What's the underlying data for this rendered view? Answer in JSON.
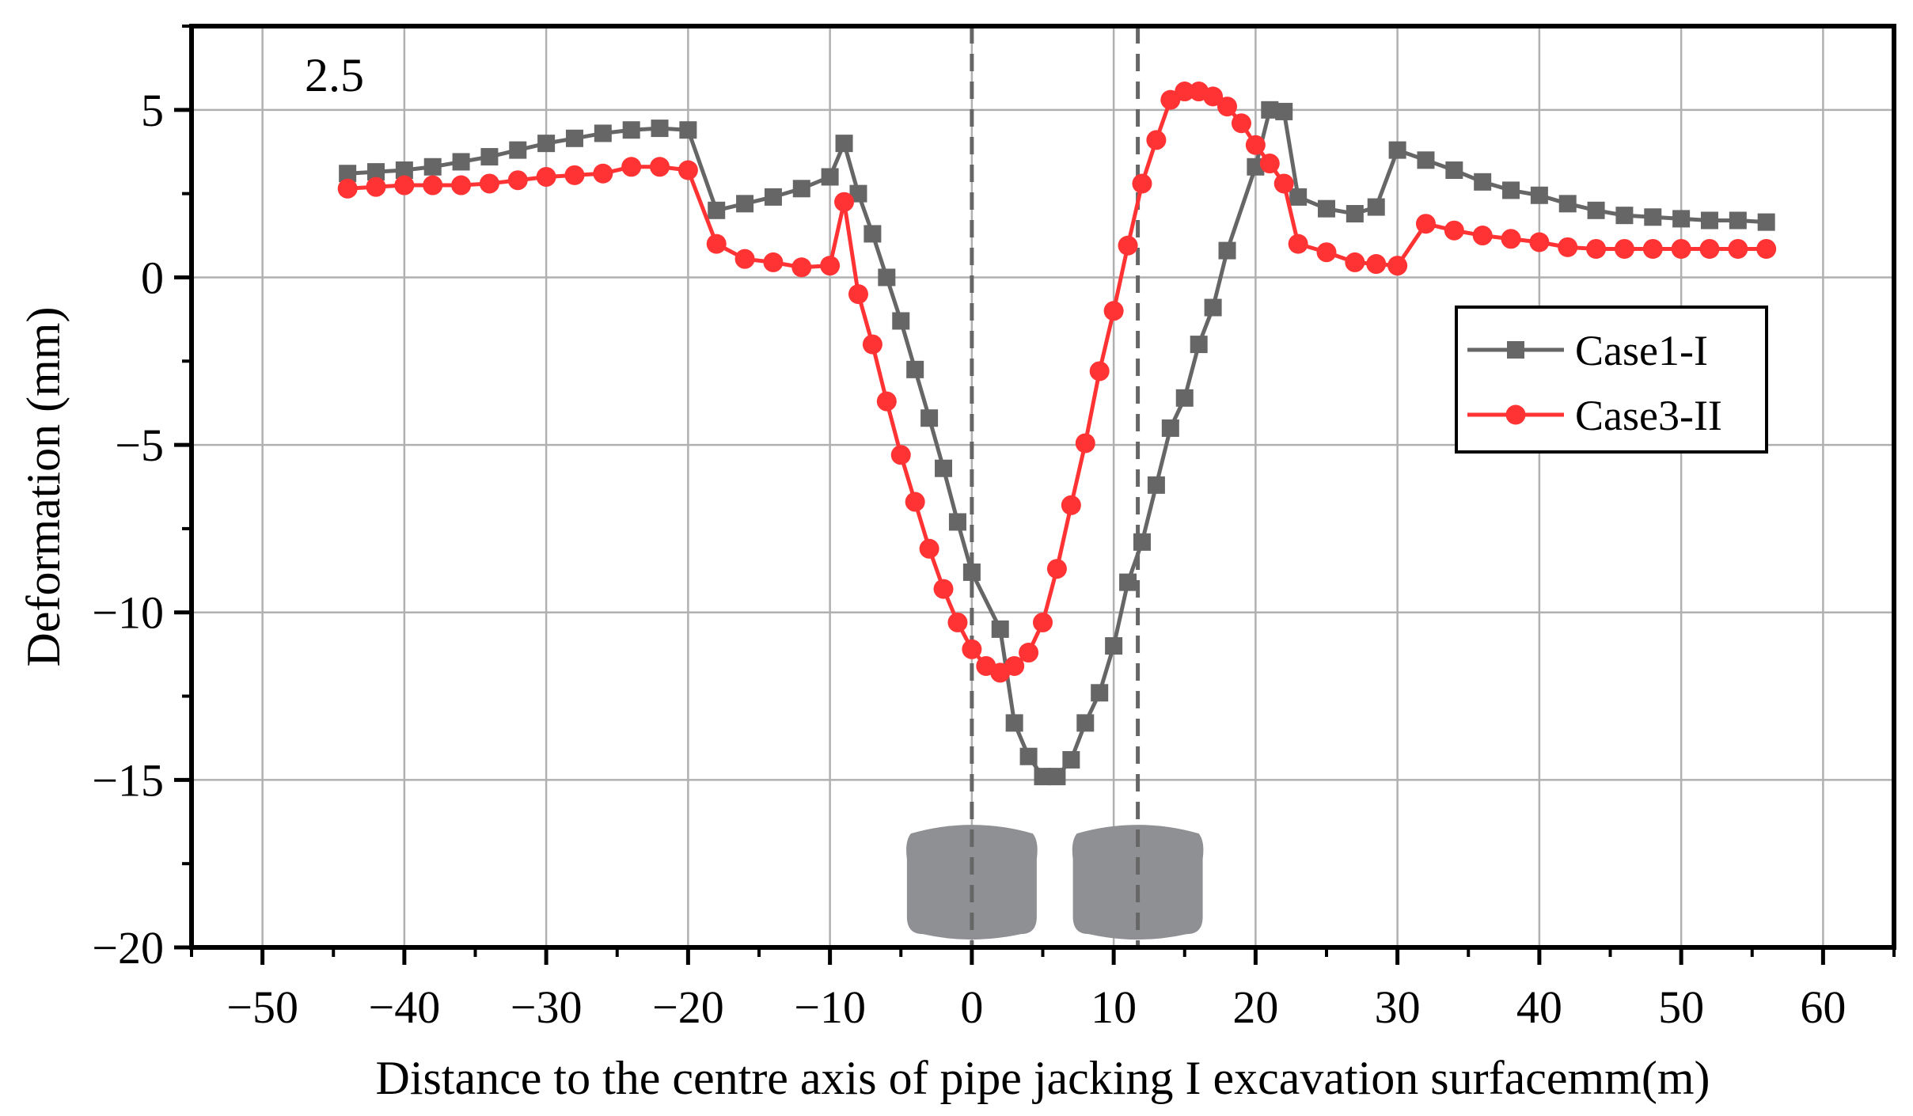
{
  "chart_data": {
    "type": "line",
    "title": "",
    "annotation": "2.5",
    "xlabel": "Distance to the centre axis of pipe jacking I excavation surfacemm(m)",
    "ylabel": "Deformation (mm)",
    "xlim": [
      -55,
      65
    ],
    "ylim": [
      -20,
      7.5
    ],
    "xticks": [
      -50,
      -40,
      -30,
      -20,
      -10,
      0,
      10,
      20,
      30,
      40,
      50,
      60
    ],
    "xtick_labels": [
      "−50",
      "−40",
      "−30",
      "−20",
      "−10",
      "0",
      "10",
      "20",
      "30",
      "40",
      "50",
      "60"
    ],
    "yticks": [
      5,
      0,
      -5,
      -10,
      -15,
      -20
    ],
    "ytick_labels": [
      "5",
      "0",
      "−5",
      "−10",
      "−15",
      "−20"
    ],
    "grid": true,
    "legend_position": "right",
    "reference_lines_x": [
      0,
      11.7
    ],
    "pipe_sections_center_x": [
      0,
      11.7
    ],
    "series": [
      {
        "name": "Case1-I",
        "color": "#666666",
        "marker": "square",
        "x": [
          -44,
          -42,
          -40,
          -38,
          -36,
          -34,
          -32,
          -30,
          -28,
          -26,
          -24,
          -22,
          -20,
          -18,
          -16,
          -14,
          -12,
          -10,
          -9,
          -8,
          -7,
          -6,
          -5,
          -4,
          -3,
          -2,
          -1,
          0,
          2,
          3,
          4,
          5,
          6,
          7,
          8,
          9,
          10,
          11,
          12,
          13,
          14,
          15,
          16,
          17,
          18,
          20,
          21,
          22,
          23,
          25,
          27,
          28.5,
          30,
          32,
          34,
          36,
          38,
          40,
          42,
          44,
          46,
          48,
          50,
          52,
          54,
          56
        ],
        "y": [
          3.1,
          3.15,
          3.2,
          3.3,
          3.45,
          3.6,
          3.8,
          4.0,
          4.15,
          4.3,
          4.4,
          4.45,
          4.4,
          2.0,
          2.2,
          2.4,
          2.65,
          3.0,
          4.0,
          2.5,
          1.3,
          0.0,
          -1.3,
          -2.75,
          -4.2,
          -5.7,
          -7.3,
          -8.8,
          -10.5,
          -13.3,
          -14.3,
          -14.9,
          -14.9,
          -14.4,
          -13.3,
          -12.4,
          -11.0,
          -9.1,
          -7.9,
          -6.2,
          -4.5,
          -3.6,
          -2.0,
          -0.9,
          0.8,
          3.3,
          5.0,
          4.95,
          2.4,
          2.05,
          1.9,
          2.1,
          3.8,
          3.5,
          3.2,
          2.85,
          2.6,
          2.45,
          2.2,
          2.0,
          1.85,
          1.8,
          1.75,
          1.7,
          1.7,
          1.65
        ]
      },
      {
        "name": "Case3-II",
        "color": "#ff3333",
        "marker": "circle",
        "x": [
          -44,
          -42,
          -40,
          -38,
          -36,
          -34,
          -32,
          -30,
          -28,
          -26,
          -24,
          -22,
          -20,
          -18,
          -16,
          -14,
          -12,
          -10,
          -9,
          -8,
          -7,
          -6,
          -5,
          -4,
          -3,
          -2,
          -1,
          0,
          1,
          2,
          3,
          4,
          5,
          6,
          7,
          8,
          9,
          10,
          11,
          12,
          13,
          14,
          15,
          16,
          17,
          18,
          19,
          20,
          21,
          22,
          23,
          25,
          27,
          28.5,
          30,
          32,
          34,
          36,
          38,
          40,
          42,
          44,
          46,
          48,
          50,
          52,
          54,
          56
        ],
        "y": [
          2.65,
          2.7,
          2.75,
          2.75,
          2.75,
          2.8,
          2.9,
          3.0,
          3.05,
          3.1,
          3.3,
          3.3,
          3.2,
          1.0,
          0.55,
          0.45,
          0.3,
          0.35,
          2.25,
          -0.5,
          -2.0,
          -3.7,
          -5.3,
          -6.7,
          -8.1,
          -9.3,
          -10.3,
          -11.1,
          -11.6,
          -11.8,
          -11.6,
          -11.2,
          -10.3,
          -8.7,
          -6.8,
          -4.95,
          -2.8,
          -1.0,
          0.95,
          2.8,
          4.1,
          5.3,
          5.55,
          5.55,
          5.4,
          5.1,
          4.6,
          3.95,
          3.4,
          2.8,
          1.0,
          0.75,
          0.45,
          0.4,
          0.35,
          1.6,
          1.4,
          1.25,
          1.15,
          1.05,
          0.9,
          0.85,
          0.85,
          0.85,
          0.85,
          0.85,
          0.85,
          0.85
        ]
      }
    ]
  }
}
